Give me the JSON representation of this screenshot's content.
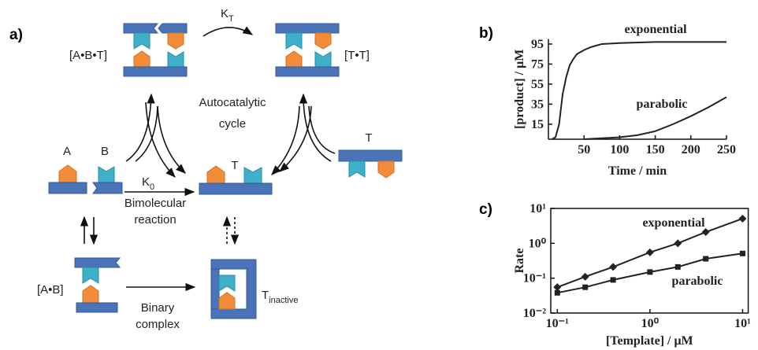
{
  "panel_labels": [
    "a)",
    "b)",
    "c)"
  ],
  "diagram": {
    "complex_abt": "[A•B•T]",
    "k_t": {
      "main": "K",
      "sub": "T"
    },
    "complex_tt": "[T•T]",
    "cycle": [
      "Autocatalytic",
      "cycle"
    ],
    "a": "A",
    "b": "B",
    "t_product": "T",
    "t_free": "T",
    "k_0": {
      "main": "K",
      "sub": "0"
    },
    "bimolecular": [
      "Bimolecular",
      "reaction"
    ],
    "complex_ab": "[A•B]",
    "binary": [
      "Binary",
      "complex"
    ],
    "t_inactive": {
      "main": "T",
      "sub": "inactive"
    }
  },
  "chart_data": [
    {
      "type": "line",
      "xlabel": "Time / min",
      "ylabel": "[product] / μM",
      "xlim": [
        0,
        250
      ],
      "ylim": [
        0,
        100
      ],
      "xticks": [
        50,
        100,
        150,
        200,
        250
      ],
      "yticks": [
        15,
        35,
        55,
        75,
        95
      ],
      "series": [
        {
          "name": "exponential",
          "color": "#222222",
          "x": [
            5,
            10,
            15,
            20,
            25,
            30,
            35,
            40,
            50,
            60,
            75,
            100,
            150,
            200,
            250
          ],
          "values": [
            0,
            2,
            15,
            45,
            62,
            74,
            80,
            85,
            89,
            92,
            95,
            96,
            97,
            97,
            97
          ]
        },
        {
          "name": "parabolic",
          "color": "#222222",
          "x": [
            50,
            100,
            125,
            150,
            175,
            200,
            225,
            250
          ],
          "values": [
            0,
            2,
            4,
            8,
            15,
            23,
            32,
            42
          ]
        }
      ]
    },
    {
      "type": "line",
      "xlabel": "[Template] / μM",
      "ylabel": "Rate",
      "log_x": true,
      "log_y": true,
      "xlim": [
        0.085,
        11.5
      ],
      "ylim": [
        0.01,
        10
      ],
      "xticks": [
        {
          "value": 0.1,
          "label": "10⁻¹"
        },
        {
          "value": 1,
          "label": "10⁰"
        },
        {
          "value": 10,
          "label": "10¹"
        }
      ],
      "yticks": [
        {
          "value": 0.01,
          "label": "10⁻²"
        },
        {
          "value": 0.1,
          "label": "10⁻¹"
        },
        {
          "value": 1,
          "label": "10⁰"
        },
        {
          "value": 10,
          "label": "10¹"
        }
      ],
      "series": [
        {
          "name": "exponential",
          "color": "#222222",
          "marker": "diamond",
          "x": [
            0.1,
            0.2,
            0.4,
            1,
            2,
            4,
            10
          ],
          "values": [
            0.055,
            0.11,
            0.21,
            0.55,
            1.0,
            2.1,
            5.1
          ]
        },
        {
          "name": "parabolic",
          "color": "#222222",
          "marker": "square",
          "x": [
            0.1,
            0.2,
            0.4,
            1,
            2,
            4,
            10
          ],
          "values": [
            0.038,
            0.055,
            0.089,
            0.15,
            0.21,
            0.36,
            0.51
          ]
        }
      ]
    }
  ]
}
